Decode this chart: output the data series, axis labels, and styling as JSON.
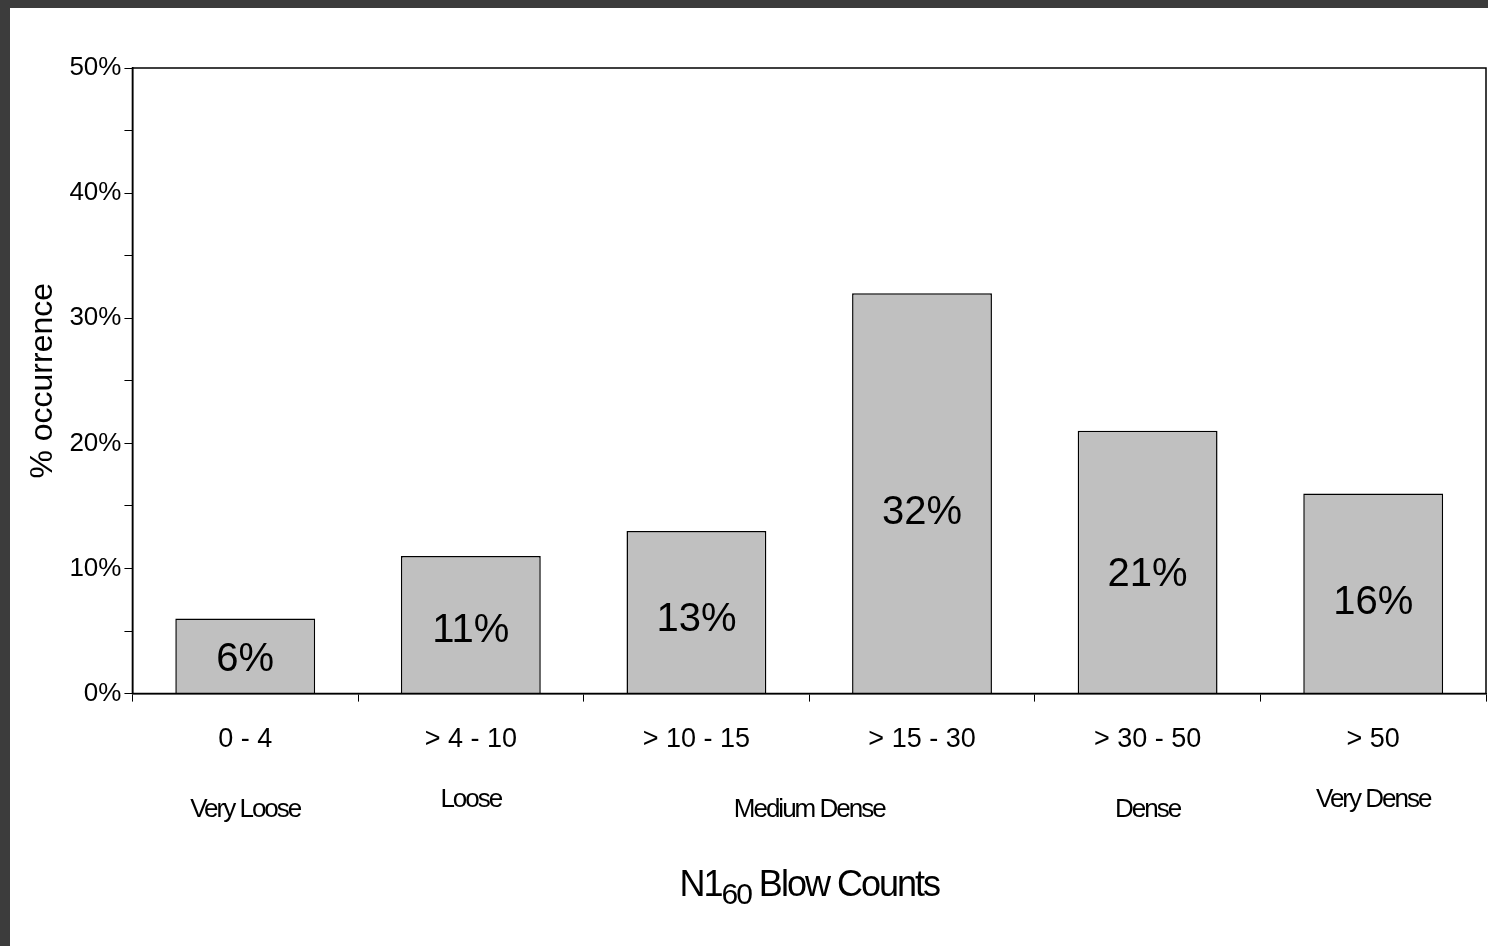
{
  "chart_data": {
    "type": "bar",
    "xlabel": "N1$_{60}$ Blow Counts",
    "ylabel": "% occurrence",
    "categories": [
      "0 - 4",
      "> 4 - 10",
      "> 10 - 15",
      "> 15 - 30",
      "> 30 - 50",
      "> 50"
    ],
    "values": [
      6,
      11,
      13,
      32,
      21,
      16
    ],
    "value_labels": [
      "6%",
      "11%",
      "13%",
      "32%",
      "21%",
      "16%"
    ],
    "color": "#c0c0c0",
    "ylim": [
      0,
      50
    ],
    "yticks": [
      {
        "value": 0,
        "label": "0%"
      },
      {
        "value": 5,
        "label": null
      },
      {
        "value": 10,
        "label": "10%"
      },
      {
        "value": 15,
        "label": null
      },
      {
        "value": 20,
        "label": "20%"
      },
      {
        "value": 25,
        "label": null
      },
      {
        "value": 30,
        "label": "30%"
      },
      {
        "value": 35,
        "label": null
      },
      {
        "value": 40,
        "label": "40%"
      },
      {
        "value": 45,
        "label": null
      },
      {
        "value": 50,
        "label": "50%"
      }
    ],
    "grid": false,
    "legend": false,
    "annotations": [
      "Very Loose",
      "Loose",
      "Medium Dense",
      "Dense",
      "Very Dense"
    ]
  }
}
